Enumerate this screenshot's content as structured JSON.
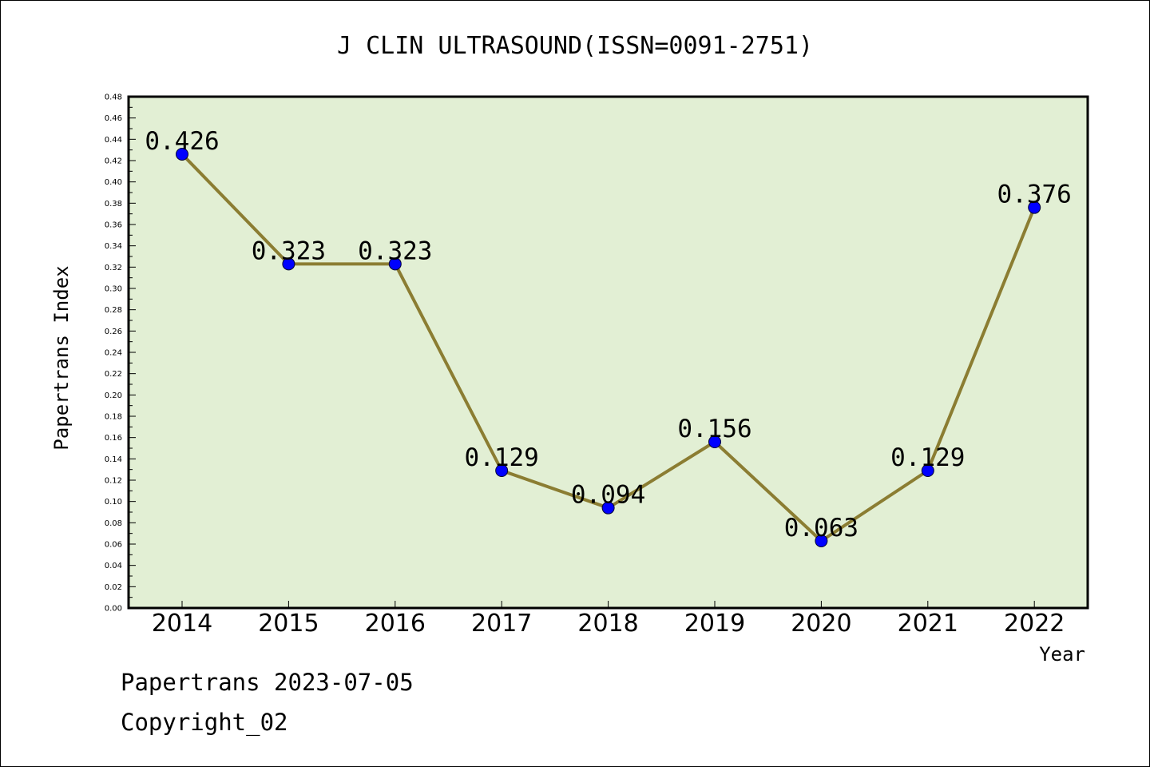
{
  "chart_data": {
    "type": "line",
    "title": "J CLIN ULTRASOUND(ISSN=0091-2751)",
    "xlabel": "Year",
    "ylabel": "Papertrans Index",
    "categories": [
      "2014",
      "2015",
      "2016",
      "2017",
      "2018",
      "2019",
      "2020",
      "2021",
      "2022"
    ],
    "series": [
      {
        "values": [
          0.426,
          0.323,
          0.323,
          0.129,
          0.094,
          0.156,
          0.063,
          0.129,
          0.376
        ],
        "data_labels": [
          "0.426",
          "0.323",
          "0.323",
          "0.129",
          "0.094",
          "0.156",
          "0.063",
          "0.129",
          "0.376"
        ]
      }
    ],
    "ylim": [
      0,
      0.48
    ],
    "yticks": [
      "0.00",
      "0.02",
      "0.04",
      "0.06",
      "0.08",
      "0.10",
      "0.12",
      "0.14",
      "0.16",
      "0.18",
      "0.20",
      "0.22",
      "0.24",
      "0.26",
      "0.28",
      "0.30",
      "0.32",
      "0.34",
      "0.36",
      "0.38",
      "0.40",
      "0.42",
      "0.44",
      "0.46",
      "0.48"
    ],
    "grid": false,
    "colors": {
      "plot_background": "#e2efd4",
      "line": "#8b7d32",
      "marker": "#0000ff"
    }
  },
  "footer": {
    "line1": "Papertrans 2023-07-05",
    "line2": "Copyright_02"
  }
}
